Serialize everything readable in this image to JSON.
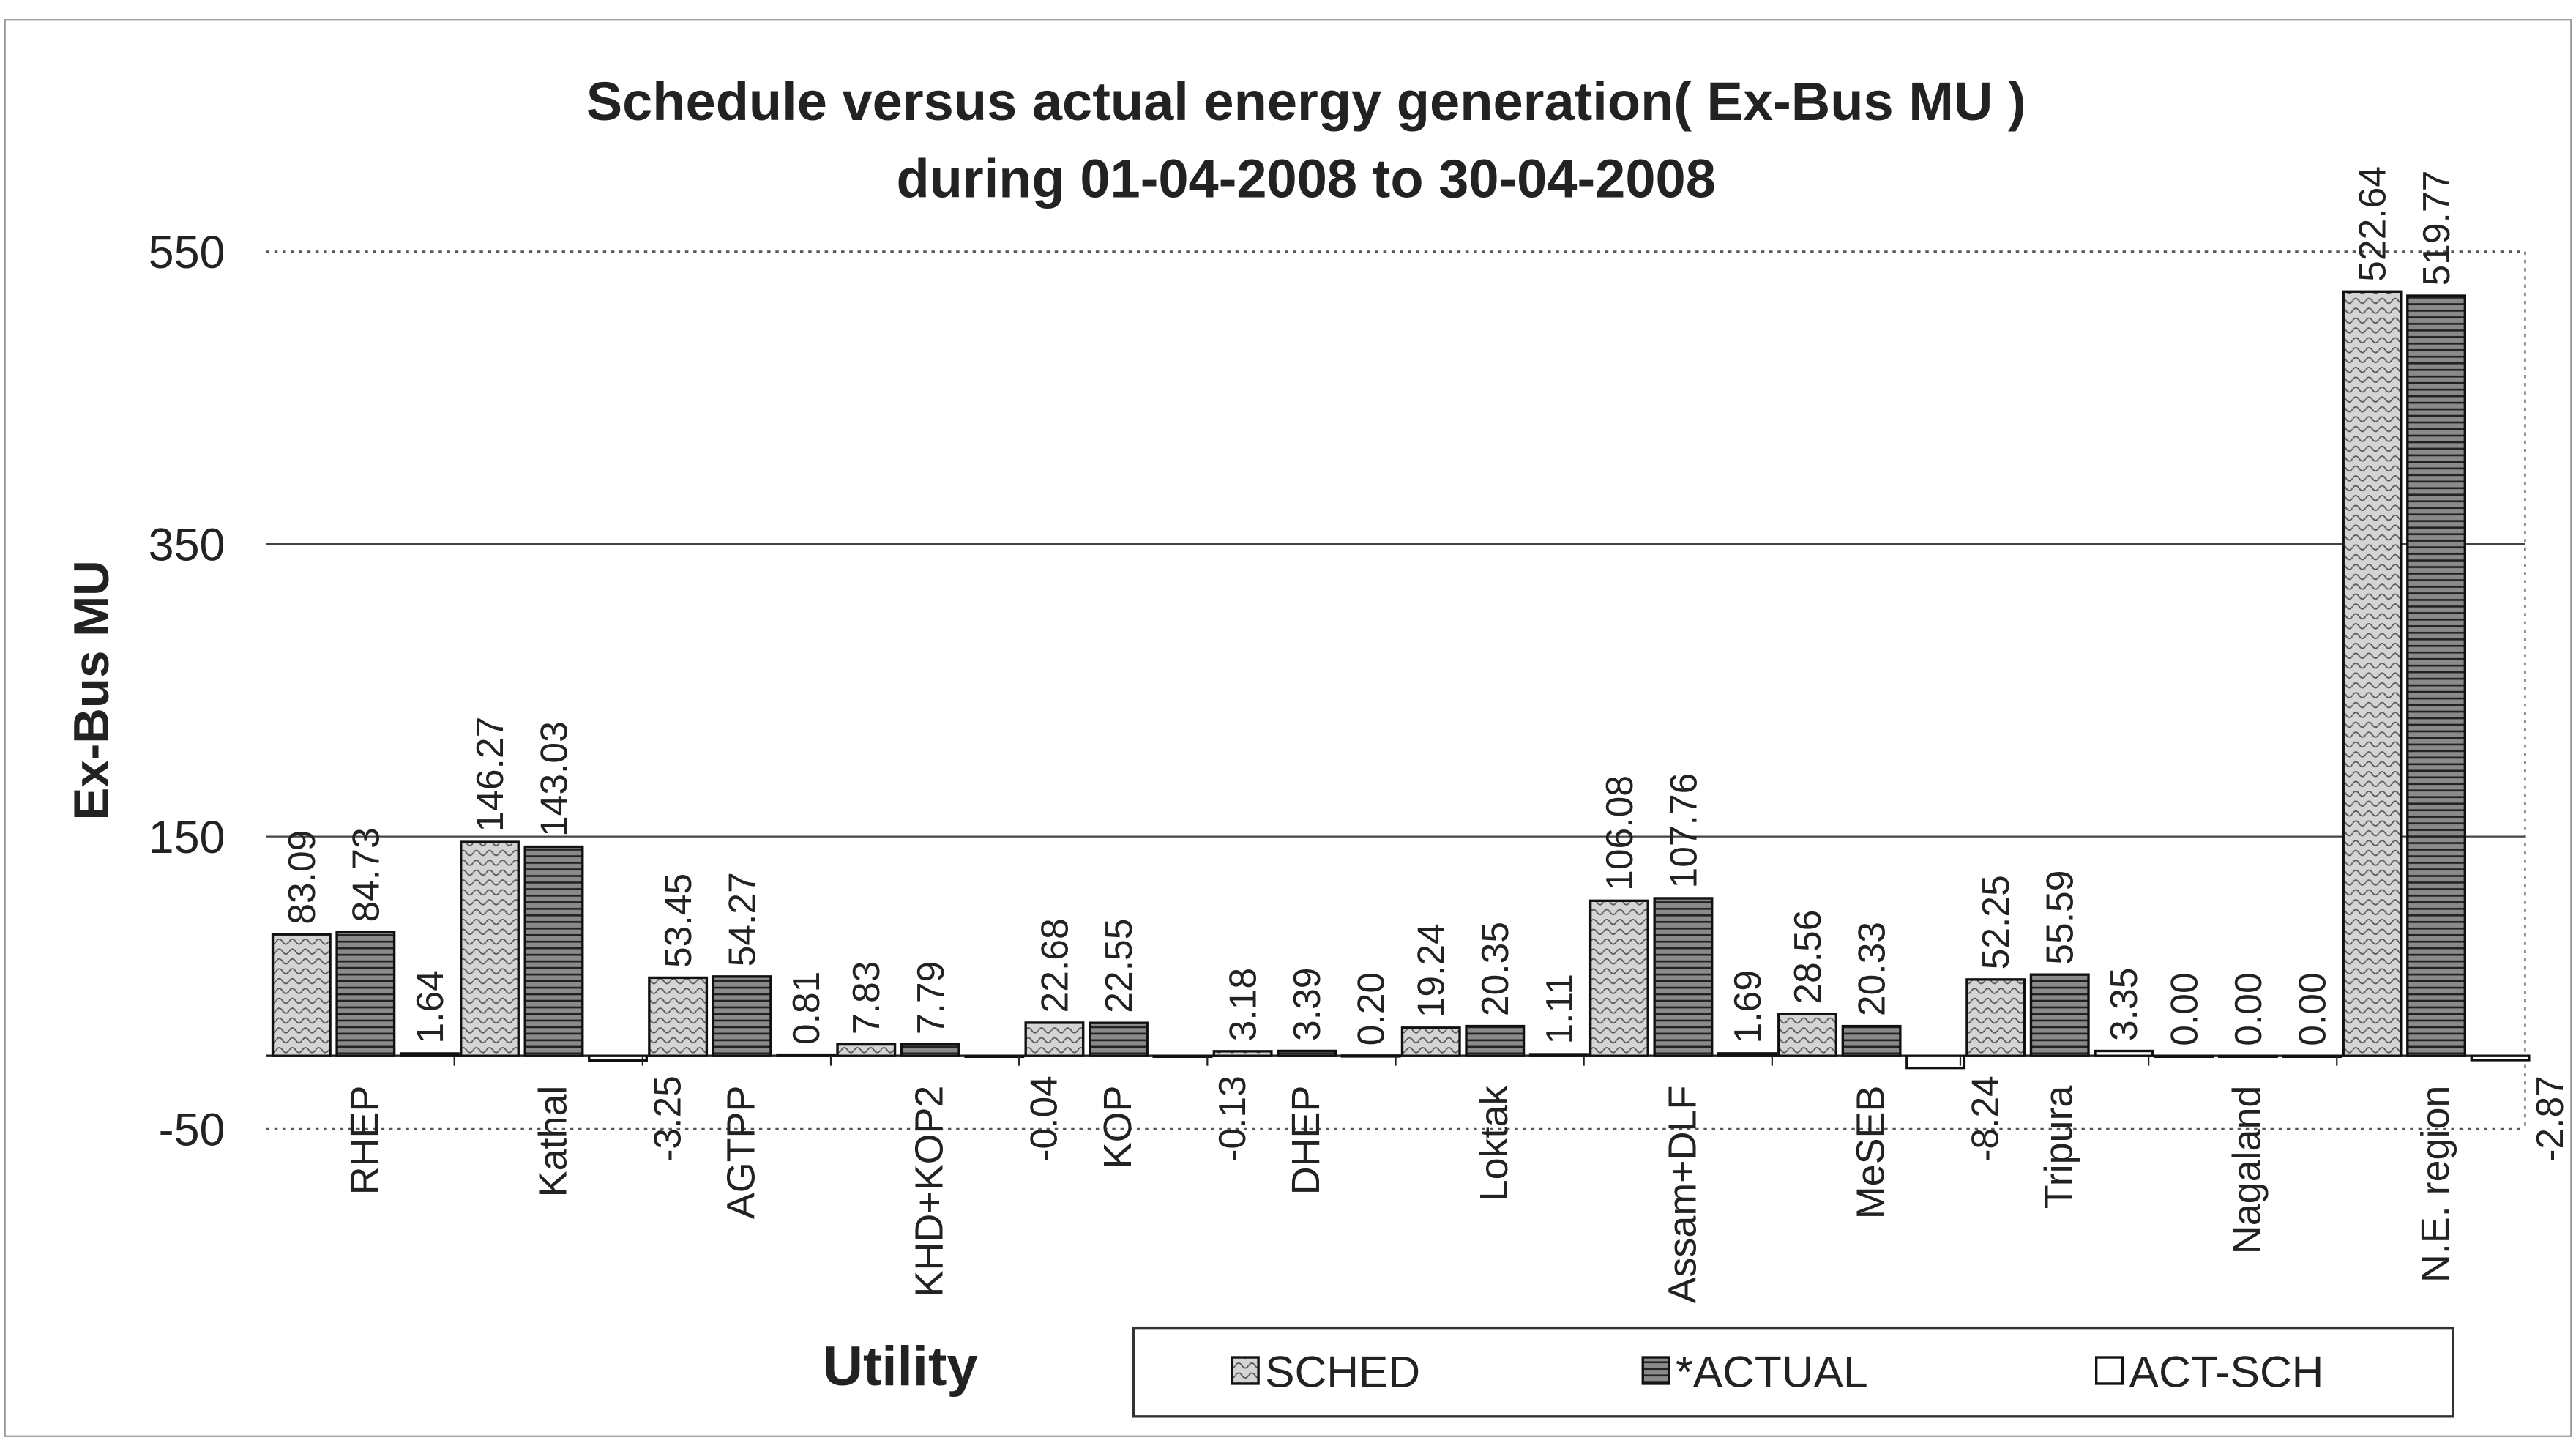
{
  "chart_data": {
    "type": "bar",
    "title": "Schedule versus actual energy generation( Ex-Bus MU )",
    "subtitle": "during 01-04-2008 to 30-04-2008",
    "x_label": "Utility",
    "y_label": "Ex-Bus MU",
    "categories": [
      "RHEP",
      "Kathal",
      "AGTPP",
      "KHD+KOP2",
      "KOP",
      "DHEP",
      "Loktak",
      "Assam+DLF",
      "MeSEB",
      "Tripura",
      "Nagaland",
      "N.E. region"
    ],
    "series": [
      {
        "name": "SCHED",
        "color": "#d4d4d4",
        "values": [
          83.09,
          146.27,
          53.45,
          7.83,
          22.68,
          3.18,
          19.24,
          106.08,
          28.56,
          52.25,
          0,
          522.64
        ],
        "value_labels": [
          "83.09",
          "146.27",
          "53.45",
          "7.83",
          "22.68",
          "3.18",
          "19.24",
          "106.08",
          "28.56",
          "52.25",
          "0.00",
          "522.64"
        ]
      },
      {
        "name": "*ACTUAL",
        "color": "#6e6e6e",
        "values": [
          84.73,
          143.03,
          54.27,
          7.79,
          22.55,
          3.39,
          20.35,
          107.76,
          20.33,
          55.59,
          0,
          519.77
        ],
        "value_labels": [
          "84.73",
          "143.03",
          "54.27",
          "7.79",
          "22.55",
          "3.39",
          "20.35",
          "107.76",
          "20.33",
          "55.59",
          "0.00",
          "519.77"
        ]
      },
      {
        "name": "ACT-SCH",
        "color": "#ffffff",
        "values": [
          1.64,
          -3.25,
          0.81,
          -0.04,
          -0.13,
          0.2,
          1.11,
          1.69,
          -8.24,
          3.35,
          0,
          -2.87
        ],
        "value_labels": [
          "1.64",
          "-3.25",
          "0.81",
          "-0.04",
          "-0.13",
          "0.20",
          "1.11",
          "1.69",
          "-8.24",
          "3.35",
          "0.00",
          "-2.87"
        ]
      }
    ],
    "ylim": [
      -50,
      550
    ],
    "yticks": [
      -50,
      150,
      350,
      550
    ],
    "grid": true,
    "legend": "bottom"
  }
}
